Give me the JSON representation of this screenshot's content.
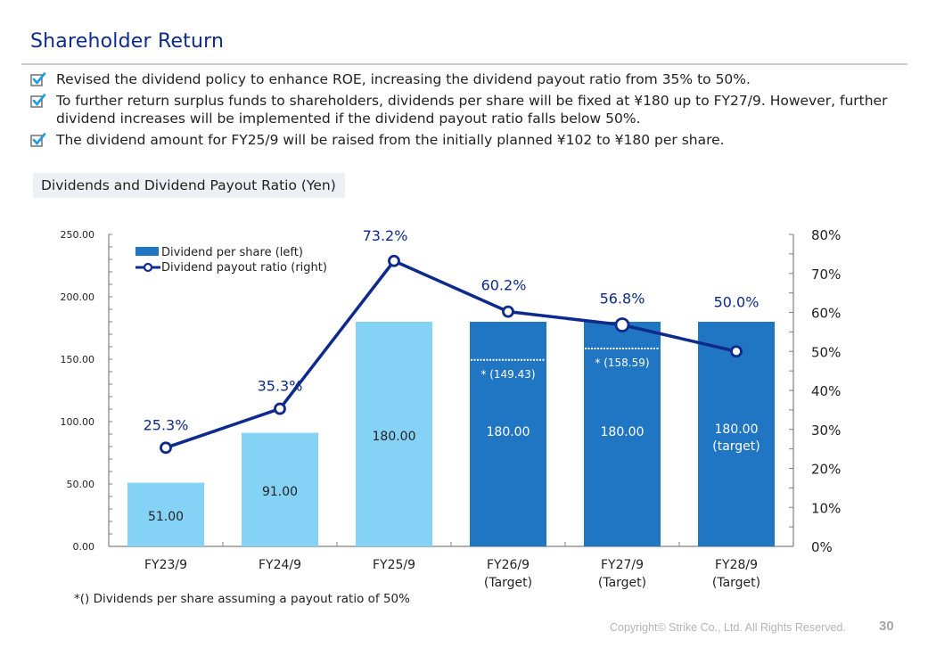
{
  "header": {
    "title": "Shareholder Return"
  },
  "bullets": [
    {
      "icon": "checkbox-checked-icon",
      "text": "Revised the dividend policy to enhance ROE, increasing the dividend payout ratio from 35% to 50%."
    },
    {
      "icon": "checkbox-checked-icon",
      "text": "To further return surplus funds to shareholders, dividends per share will be fixed at ¥180 up to FY27/9. However, further dividend increases will be implemented if the dividend payout ratio falls below 50%."
    },
    {
      "icon": "checkbox-checked-icon",
      "text": "The dividend amount for FY25/9 will be raised from the initially planned ¥102 to ¥180 per share."
    }
  ],
  "section_label": "Dividends and Dividend Payout Ratio (Yen)",
  "colors": {
    "title": "#0d2a8c",
    "bar_actual": "#84d2f6",
    "bar_target": "#2176c3",
    "line": "#0d2a8c",
    "axis": "#808080",
    "check": "#1e9be0"
  },
  "chart_data": {
    "type": "bar+line",
    "title": "Dividends and Dividend Payout Ratio (Yen)",
    "categories": [
      [
        "FY23/9"
      ],
      [
        "FY24/9"
      ],
      [
        "FY25/9"
      ],
      [
        "FY26/9",
        "(Target)"
      ],
      [
        "FY27/9",
        "(Target)"
      ],
      [
        "FY28/9",
        "(Target)"
      ]
    ],
    "series": [
      {
        "name": "Dividend per share (left)",
        "type": "bar",
        "axis": "left",
        "values": [
          51.0,
          91.0,
          180.0,
          180.0,
          180.0,
          180.0
        ],
        "labels": [
          [
            "51.00"
          ],
          [
            "91.00"
          ],
          [
            "180.00"
          ],
          [
            "180.00"
          ],
          [
            "180.00"
          ],
          [
            "180.00",
            "(target)"
          ]
        ],
        "is_target": [
          false,
          false,
          false,
          true,
          true,
          true
        ]
      },
      {
        "name": "Dividend payout ratio (right)",
        "type": "line",
        "axis": "right",
        "values": [
          25.3,
          35.3,
          73.2,
          60.2,
          56.8,
          50.0
        ],
        "labels": [
          "25.3%",
          "35.3%",
          "73.2%",
          "60.2%",
          "56.8%",
          "50.0%"
        ]
      }
    ],
    "reference_markers": [
      {
        "category_index": 3,
        "value": 149.43,
        "label": "* (149.43)"
      },
      {
        "category_index": 4,
        "value": 158.59,
        "label": "* (158.59)"
      }
    ],
    "left_axis": {
      "ylim": [
        0,
        250
      ],
      "ticks": [
        0,
        50,
        100,
        150,
        200,
        250
      ],
      "tick_labels": [
        "0.00",
        "50.00",
        "100.00",
        "150.00",
        "200.00",
        "250.00"
      ],
      "minor_step": 10
    },
    "right_axis": {
      "ylim": [
        0,
        80
      ],
      "ticks": [
        0,
        10,
        20,
        30,
        40,
        50,
        60,
        70,
        80
      ],
      "tick_labels": [
        "0%",
        "10%",
        "20%",
        "30%",
        "40%",
        "50%",
        "60%",
        "70%",
        "80%"
      ],
      "minor_step": 5
    },
    "legend": {
      "placement": "top-left",
      "entries": [
        "Dividend per share (left)",
        "Dividend payout ratio (right)"
      ]
    },
    "grid": false
  },
  "footnote": "*() Dividends per share assuming a payout ratio of 50%",
  "footer": {
    "copyright": "Copyright© Strike Co., Ltd. All Rights Reserved.",
    "page_number": "30"
  }
}
